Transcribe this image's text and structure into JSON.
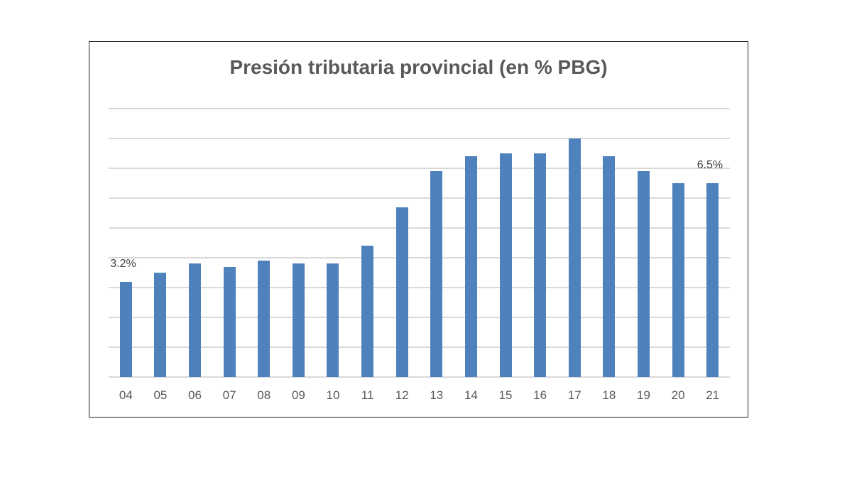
{
  "chart_data": {
    "type": "bar",
    "title": "Presión tributaria provincial (en % PBG)",
    "xlabel": "",
    "ylabel": "",
    "ylim": [
      0,
      9
    ],
    "grid": true,
    "legend": "none",
    "categories": [
      "04",
      "05",
      "06",
      "07",
      "08",
      "09",
      "10",
      "11",
      "12",
      "13",
      "14",
      "15",
      "16",
      "17",
      "18",
      "19",
      "20",
      "21"
    ],
    "values": [
      3.2,
      3.5,
      3.8,
      3.7,
      3.9,
      3.8,
      3.8,
      4.4,
      5.7,
      6.9,
      7.4,
      7.5,
      7.5,
      8.0,
      7.4,
      6.9,
      6.5,
      6.5
    ],
    "annotations": [
      {
        "category": "04",
        "label": "3.2%"
      },
      {
        "category": "21",
        "label": "6.5%"
      }
    ],
    "color": "#4f81bd"
  }
}
